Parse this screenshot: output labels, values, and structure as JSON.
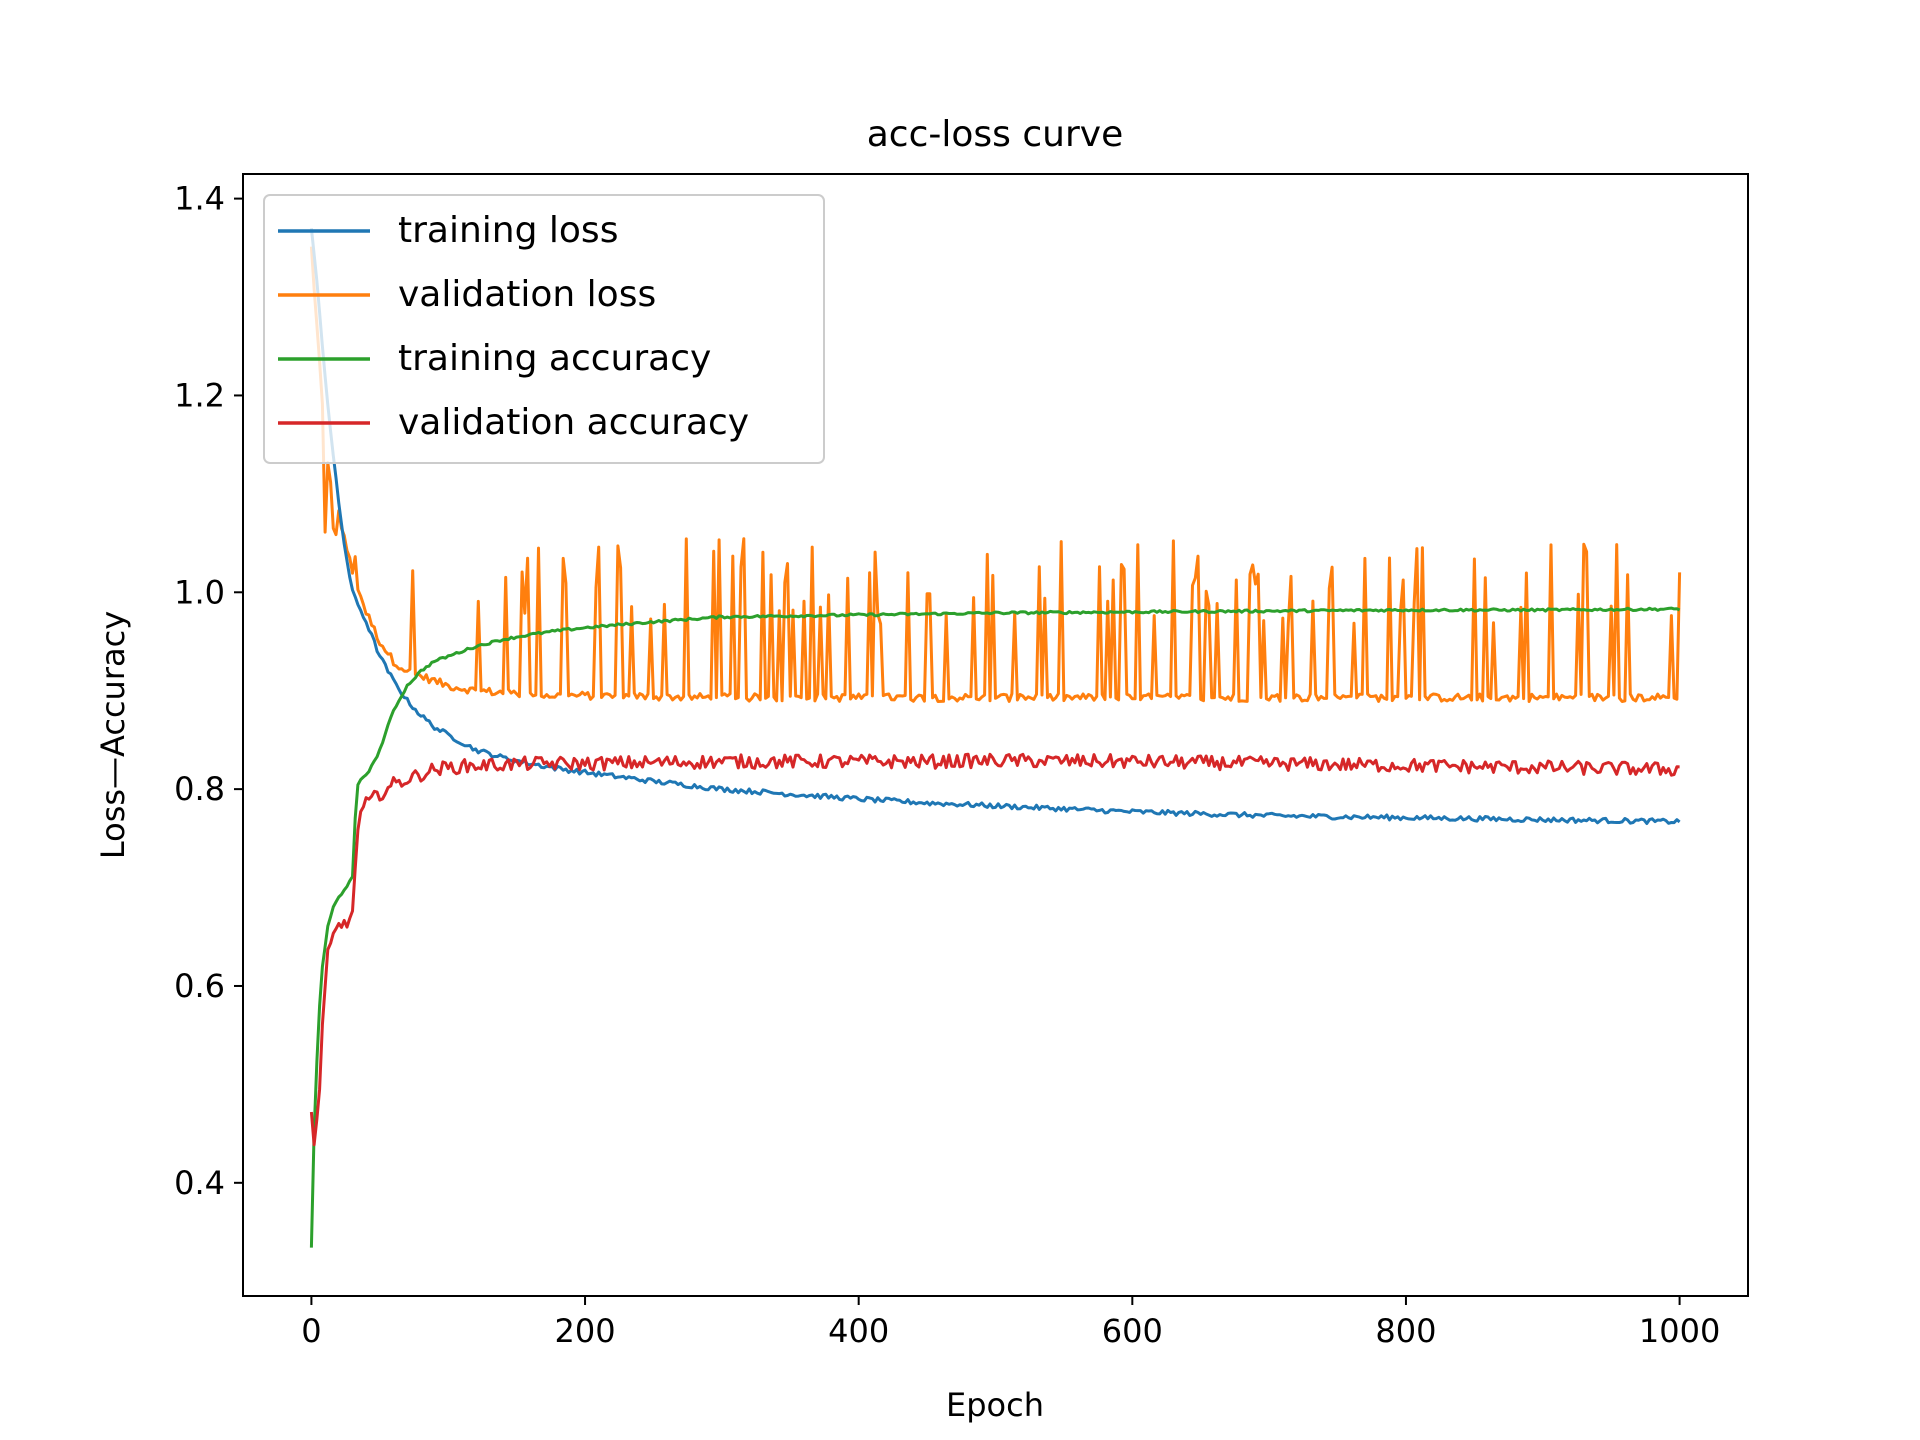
{
  "chart_data": {
    "type": "line",
    "title": "acc-loss curve",
    "xlabel": "Epoch",
    "ylabel": "Loss—Accuracy",
    "xlim": [
      -50,
      1050
    ],
    "ylim": [
      0.285,
      1.425
    ],
    "x_ticks": [
      {
        "value": 0,
        "label": "0"
      },
      {
        "value": 200,
        "label": "200"
      },
      {
        "value": 400,
        "label": "400"
      },
      {
        "value": 600,
        "label": "600"
      },
      {
        "value": 800,
        "label": "800"
      },
      {
        "value": 1000,
        "label": "1000"
      }
    ],
    "y_ticks": [
      {
        "value": 0.4,
        "label": "0.4"
      },
      {
        "value": 0.6,
        "label": "0.6"
      },
      {
        "value": 0.8,
        "label": "0.8"
      },
      {
        "value": 1.0,
        "label": "1.0"
      },
      {
        "value": 1.2,
        "label": "1.2"
      },
      {
        "value": 1.4,
        "label": "1.4"
      }
    ],
    "grid": false,
    "legend_position": "top-left",
    "series": [
      {
        "name": "training loss",
        "color": "#1f77b4",
        "x": [
          0,
          5,
          10,
          15,
          20,
          25,
          30,
          40,
          50,
          60,
          70,
          80,
          90,
          100,
          120,
          140,
          160,
          180,
          200,
          250,
          300,
          350,
          400,
          450,
          500,
          550,
          600,
          650,
          700,
          750,
          800,
          850,
          900,
          950,
          1000
        ],
        "y": [
          1.37,
          1.3,
          1.22,
          1.15,
          1.09,
          1.04,
          1.0,
          0.97,
          0.935,
          0.91,
          0.89,
          0.875,
          0.863,
          0.855,
          0.84,
          0.832,
          0.826,
          0.821,
          0.817,
          0.808,
          0.8,
          0.795,
          0.79,
          0.786,
          0.783,
          0.78,
          0.777,
          0.775,
          0.773,
          0.772,
          0.771,
          0.77,
          0.769,
          0.768,
          0.767
        ]
      },
      {
        "name": "validation loss",
        "color": "#ff7f0e",
        "x": [
          0,
          5,
          10,
          15,
          20,
          25,
          30,
          40,
          50,
          60,
          70,
          80,
          90,
          100,
          120,
          140,
          160,
          180,
          200,
          250,
          300,
          350,
          400,
          450,
          500,
          550,
          600,
          650,
          700,
          750,
          800,
          850,
          900,
          950,
          1000
        ],
        "y": [
          1.35,
          1.25,
          1.15,
          1.1,
          1.08,
          1.05,
          1.02,
          0.98,
          0.95,
          0.93,
          0.92,
          0.915,
          0.91,
          0.905,
          0.9,
          0.898,
          0.896,
          0.895,
          0.895,
          0.894,
          0.893,
          0.893,
          0.893,
          0.893,
          0.893,
          0.893,
          0.893,
          0.893,
          0.893,
          0.893,
          0.893,
          0.893,
          0.893,
          0.893,
          0.893
        ],
        "spike_max": 1.055
      },
      {
        "name": "training accuracy",
        "color": "#2ca02c",
        "x": [
          0,
          2,
          5,
          8,
          12,
          16,
          20,
          25,
          30,
          33,
          36,
          40,
          45,
          50,
          55,
          60,
          70,
          80,
          90,
          100,
          120,
          140,
          160,
          180,
          200,
          250,
          300,
          350,
          400,
          450,
          500,
          600,
          700,
          800,
          900,
          1000
        ],
        "y": [
          0.335,
          0.45,
          0.56,
          0.62,
          0.66,
          0.68,
          0.69,
          0.7,
          0.71,
          0.8,
          0.81,
          0.815,
          0.825,
          0.84,
          0.86,
          0.88,
          0.905,
          0.92,
          0.93,
          0.935,
          0.945,
          0.952,
          0.957,
          0.961,
          0.964,
          0.97,
          0.975,
          0.976,
          0.977,
          0.978,
          0.979,
          0.98,
          0.981,
          0.982,
          0.982,
          0.983
        ]
      },
      {
        "name": "validation accuracy",
        "color": "#d62728",
        "x": [
          0,
          2,
          5,
          8,
          12,
          16,
          20,
          25,
          30,
          33,
          36,
          40,
          45,
          50,
          55,
          60,
          70,
          80,
          90,
          100,
          120,
          140,
          160,
          180,
          200,
          250,
          300,
          350,
          400,
          450,
          500,
          600,
          700,
          800,
          900,
          1000
        ],
        "y": [
          0.47,
          0.44,
          0.47,
          0.56,
          0.63,
          0.65,
          0.66,
          0.665,
          0.67,
          0.75,
          0.775,
          0.785,
          0.79,
          0.795,
          0.8,
          0.805,
          0.81,
          0.815,
          0.82,
          0.822,
          0.824,
          0.825,
          0.826,
          0.826,
          0.826,
          0.827,
          0.828,
          0.828,
          0.828,
          0.828,
          0.829,
          0.828,
          0.826,
          0.824,
          0.822,
          0.82
        ]
      }
    ]
  }
}
